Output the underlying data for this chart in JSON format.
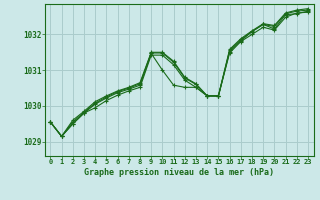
{
  "title": "Graphe pression niveau de la mer (hPa)",
  "bg_color": "#cce8e8",
  "grid_color": "#aacccc",
  "line_color": "#1a6b1a",
  "x_ticks": [
    0,
    1,
    2,
    3,
    4,
    5,
    6,
    7,
    8,
    9,
    10,
    11,
    12,
    13,
    14,
    15,
    16,
    17,
    18,
    19,
    20,
    21,
    22,
    23
  ],
  "y_ticks": [
    1029,
    1030,
    1031,
    1032
  ],
  "ylim": [
    1028.6,
    1032.85
  ],
  "xlim": [
    -0.5,
    23.5
  ],
  "series": [
    [
      1029.55,
      1029.15,
      1029.5,
      1029.8,
      1029.95,
      1030.15,
      1030.3,
      1030.42,
      1030.52,
      1031.42,
      1031.42,
      1031.15,
      1030.72,
      1030.52,
      1030.28,
      1030.28,
      1031.48,
      1031.8,
      1032.0,
      1032.2,
      1032.12,
      1032.48,
      1032.6,
      1032.62
    ],
    [
      1029.55,
      1029.15,
      1029.5,
      1029.8,
      1030.05,
      1030.22,
      1030.37,
      1030.47,
      1030.58,
      1031.47,
      1031.0,
      1030.58,
      1030.52,
      1030.52,
      1030.28,
      1030.28,
      1031.52,
      1031.82,
      1032.08,
      1032.28,
      1032.15,
      1032.55,
      1032.58,
      1032.65
    ],
    [
      1029.55,
      1029.15,
      1029.55,
      1029.82,
      1030.08,
      1030.25,
      1030.4,
      1030.5,
      1030.62,
      1031.48,
      1031.48,
      1031.22,
      1030.78,
      1030.6,
      1030.28,
      1030.28,
      1031.55,
      1031.85,
      1032.08,
      1032.28,
      1032.22,
      1032.58,
      1032.65,
      1032.68
    ],
    [
      1029.55,
      1029.15,
      1029.6,
      1029.85,
      1030.12,
      1030.28,
      1030.42,
      1030.52,
      1030.65,
      1031.5,
      1031.5,
      1031.25,
      1030.8,
      1030.62,
      1030.28,
      1030.28,
      1031.58,
      1031.88,
      1032.1,
      1032.3,
      1032.25,
      1032.6,
      1032.68,
      1032.72
    ]
  ]
}
